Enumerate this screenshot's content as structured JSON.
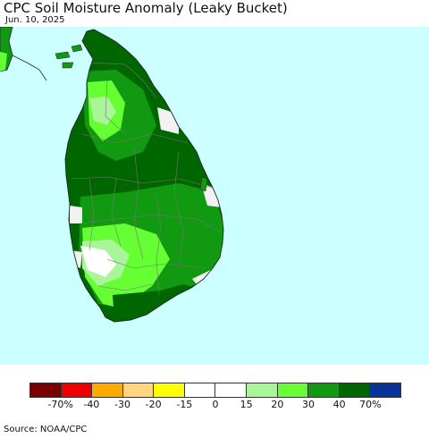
{
  "title": "CPC Soil Moisture Anomaly (Leaky Bucket)",
  "date": "Jun. 10, 2025",
  "source": "Source: NOAA/CPC",
  "colors": {
    "ocean": "#ccffff",
    "land_outline": "#222222",
    "district_lines": "#777777"
  },
  "legend": {
    "colors": [
      "#7a0000",
      "#ee0000",
      "#ffaa00",
      "#ffd580",
      "#ffff00",
      "#ffffff",
      "#ffffff",
      "#aaf59a",
      "#66ff33",
      "#119911",
      "#006600",
      "#0a3399"
    ],
    "labels": [
      "-70%",
      "-40",
      "-30",
      "-20",
      "-15",
      "0",
      "15",
      "20",
      "30",
      "40",
      "70%"
    ]
  }
}
